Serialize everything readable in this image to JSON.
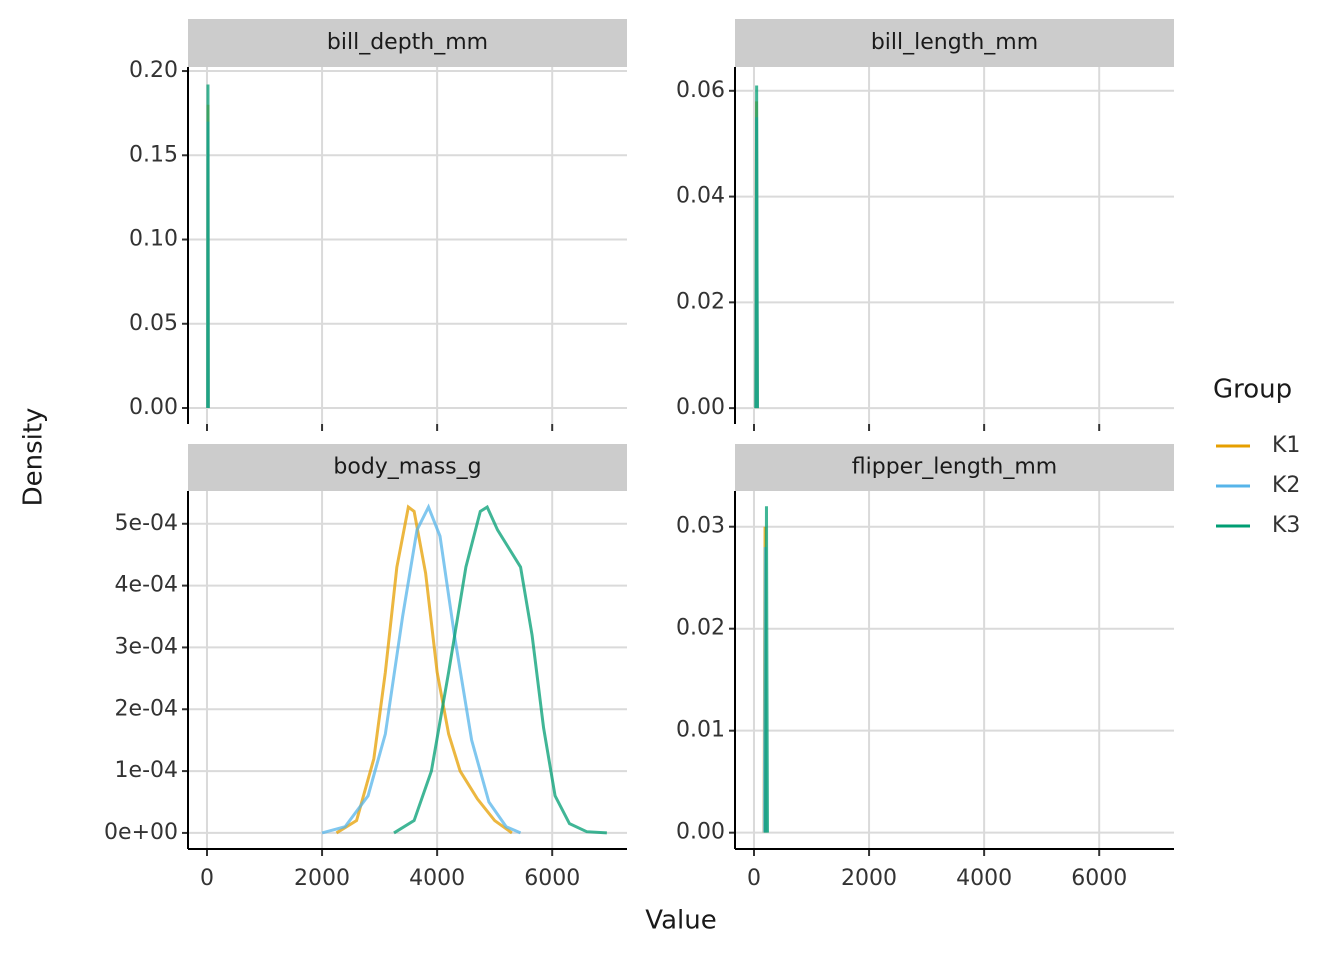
{
  "x_label": "Value",
  "y_label": "Density",
  "legend": {
    "title": "Group",
    "items": [
      {
        "name": "K1",
        "color": "#E69F00"
      },
      {
        "name": "K2",
        "color": "#56B4E9"
      },
      {
        "name": "K3",
        "color": "#009E73"
      }
    ]
  },
  "chart_data": [
    {
      "type": "line",
      "title": "bill_depth_mm",
      "grid": true,
      "xlim": [
        -330,
        7300
      ],
      "xticks": [
        0,
        2000,
        4000,
        6000
      ],
      "ylim": [
        -0.0095,
        0.2024
      ],
      "yticks": [
        {
          "value": 0,
          "label": "0.00"
        },
        0.05,
        {
          "value": 0.1,
          "label": "0.10"
        },
        0.15,
        {
          "value": 0.2,
          "label": "0.20"
        }
      ],
      "series": [
        {
          "x": [
            13,
            16,
            18,
            20,
            22
          ],
          "values": [
            0,
            0.12,
            0.18,
            0.08,
            0
          ]
        },
        {
          "x": [
            13,
            16,
            18,
            20,
            22
          ],
          "values": [
            0,
            0.1,
            0.17,
            0.09,
            0
          ]
        },
        {
          "x": [
            13,
            15,
            17,
            19,
            22
          ],
          "values": [
            0,
            0.11,
            0.192,
            0.1,
            0
          ]
        }
      ]
    },
    {
      "type": "line",
      "title": "bill_length_mm",
      "grid": true,
      "xlim": [
        -330,
        7300
      ],
      "xticks": [
        0,
        2000,
        4000,
        6000
      ],
      "ylim": [
        -0.003,
        0.0645
      ],
      "yticks": [
        {
          "value": 0,
          "label": "0.00"
        },
        0.02,
        0.04,
        0.06
      ],
      "series": [
        {
          "x": [
            32,
            38,
            44,
            50,
            58
          ],
          "values": [
            0,
            0.03,
            0.058,
            0.03,
            0
          ]
        },
        {
          "x": [
            32,
            38,
            45,
            52,
            58
          ],
          "values": [
            0,
            0.025,
            0.055,
            0.028,
            0
          ]
        },
        {
          "x": [
            32,
            40,
            46,
            52,
            60
          ],
          "values": [
            0,
            0.03,
            0.061,
            0.03,
            0
          ]
        }
      ]
    },
    {
      "type": "line",
      "title": "body_mass_g",
      "grid": true,
      "xlim": [
        -330,
        7300
      ],
      "xticks": [
        0,
        2000,
        4000,
        6000
      ],
      "ylim": [
        -2.6e-05,
        0.000553
      ],
      "yticks": [
        {
          "value": 0,
          "label": "0e+00"
        },
        {
          "value": 0.0001,
          "label": "1e-04"
        },
        {
          "value": 0.0002,
          "label": "2e-04"
        },
        {
          "value": 0.0003,
          "label": "3e-04"
        },
        {
          "value": 0.0004,
          "label": "4e-04"
        },
        {
          "value": 0.0005,
          "label": "5e-04"
        }
      ],
      "series": [
        {
          "x": [
            2250,
            2600,
            2900,
            3100,
            3300,
            3500,
            3600,
            3800,
            4000,
            4200,
            4400,
            4700,
            5000,
            5300
          ],
          "values": [
            0,
            2e-05,
            0.00012,
            0.00026,
            0.00043,
            0.000527,
            0.00052,
            0.00042,
            0.00026,
            0.00016,
            0.0001,
            5.5e-05,
            2e-05,
            0
          ]
        },
        {
          "x": [
            2000,
            2400,
            2800,
            3100,
            3400,
            3650,
            3850,
            4050,
            4300,
            4600,
            4900,
            5200,
            5450
          ],
          "values": [
            0,
            1e-05,
            6e-05,
            0.00016,
            0.00035,
            0.00049,
            0.000527,
            0.00048,
            0.00032,
            0.00015,
            5e-05,
            1e-05,
            0
          ]
        },
        {
          "x": [
            3250,
            3600,
            3900,
            4200,
            4500,
            4750,
            4870,
            5050,
            5250,
            5450,
            5650,
            5850,
            6050,
            6300,
            6600,
            6950
          ],
          "values": [
            0,
            2e-05,
            0.0001,
            0.00026,
            0.00043,
            0.00052,
            0.000527,
            0.00049,
            0.00046,
            0.00043,
            0.00032,
            0.00017,
            6e-05,
            1.5e-05,
            2e-06,
            0
          ]
        }
      ]
    },
    {
      "type": "line",
      "title": "flipper_length_mm",
      "grid": true,
      "xlim": [
        -330,
        7300
      ],
      "xticks": [
        0,
        2000,
        4000,
        6000
      ],
      "ylim": [
        -0.0016,
        0.0335
      ],
      "yticks": [
        {
          "value": 0,
          "label": "0.00"
        },
        0.01,
        0.02,
        0.03
      ],
      "series": [
        {
          "x": [
            175,
            185,
            192,
            200,
            210
          ],
          "values": [
            0,
            0.018,
            0.03,
            0.015,
            0
          ]
        },
        {
          "x": [
            178,
            188,
            195,
            204,
            214
          ],
          "values": [
            0,
            0.015,
            0.028,
            0.014,
            0
          ]
        },
        {
          "x": [
            200,
            210,
            217,
            225,
            235
          ],
          "values": [
            0,
            0.018,
            0.032,
            0.016,
            0
          ]
        }
      ]
    }
  ]
}
